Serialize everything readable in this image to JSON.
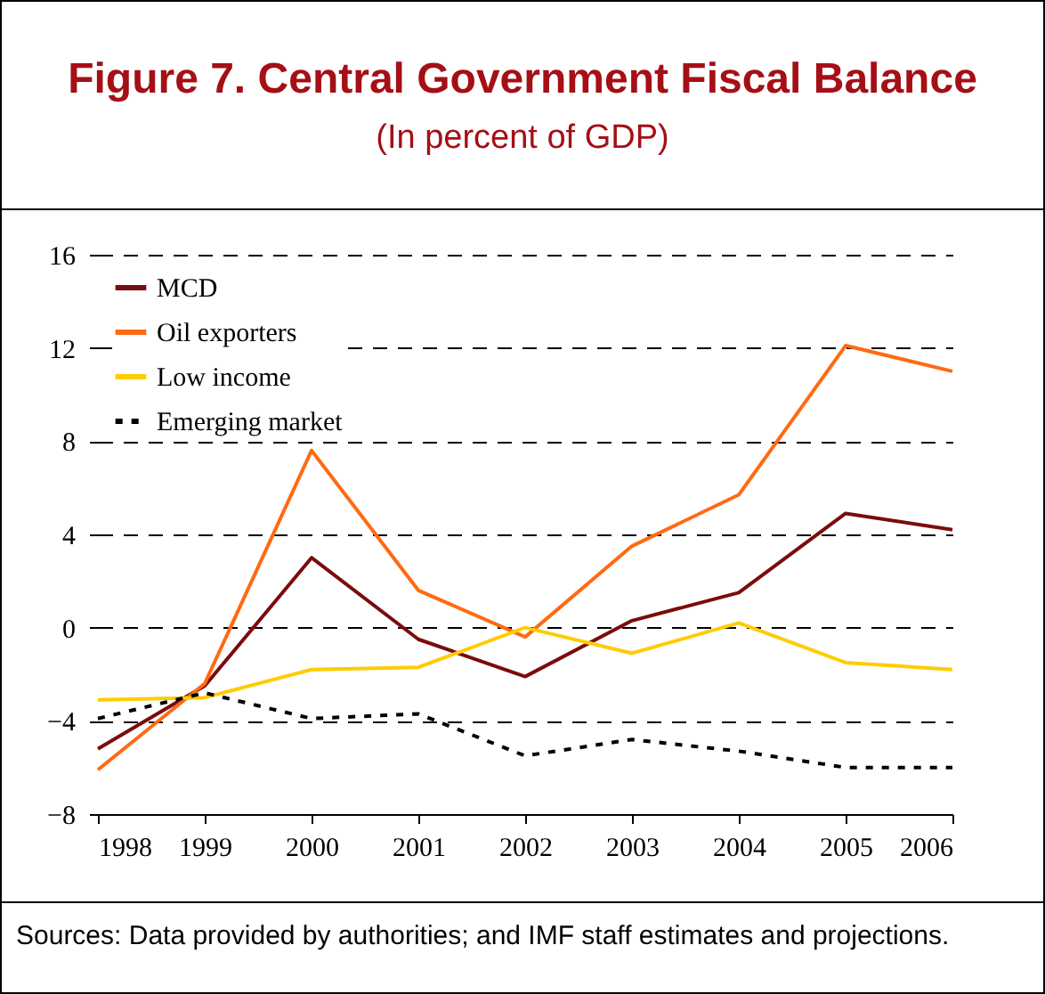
{
  "chart_data": {
    "type": "line",
    "title": "Figure 7. Central Government Fiscal Balance",
    "subtitle": "(In percent of GDP)",
    "categories": [
      "1998",
      "1999",
      "2000",
      "2001",
      "2002",
      "2003",
      "2004",
      "2005",
      "2006"
    ],
    "series": [
      {
        "name": "MCD",
        "color": "#7b0c0c",
        "values": [
          -5.2,
          -2.5,
          3.0,
          -0.5,
          -2.1,
          0.3,
          1.5,
          4.9,
          4.2
        ]
      },
      {
        "name": "Oil exporters",
        "color": "#ff6a13",
        "values": [
          -6.1,
          -2.4,
          7.6,
          1.6,
          -0.4,
          3.5,
          5.7,
          12.1,
          11.0
        ]
      },
      {
        "name": "Low income",
        "color": "#ffcc00",
        "values": [
          -3.1,
          -3.0,
          -1.8,
          -1.7,
          0.0,
          -1.1,
          0.2,
          -1.5,
          -1.8
        ]
      },
      {
        "name": "Emerging market",
        "color": "#000000",
        "line_style": "dashed",
        "values": [
          -3.9,
          -2.8,
          -3.9,
          -3.7,
          -5.5,
          -4.8,
          -5.3,
          -6.0,
          -6.0
        ]
      }
    ],
    "ylim": [
      -8,
      16
    ],
    "yticks": [
      -8,
      -4,
      0,
      4,
      8,
      12,
      16
    ],
    "grid": "y",
    "legend": "top left",
    "line_style": "solid",
    "annotations": [
      "Sources: Data provided by authorities; and IMF staff estimates and projections."
    ]
  }
}
